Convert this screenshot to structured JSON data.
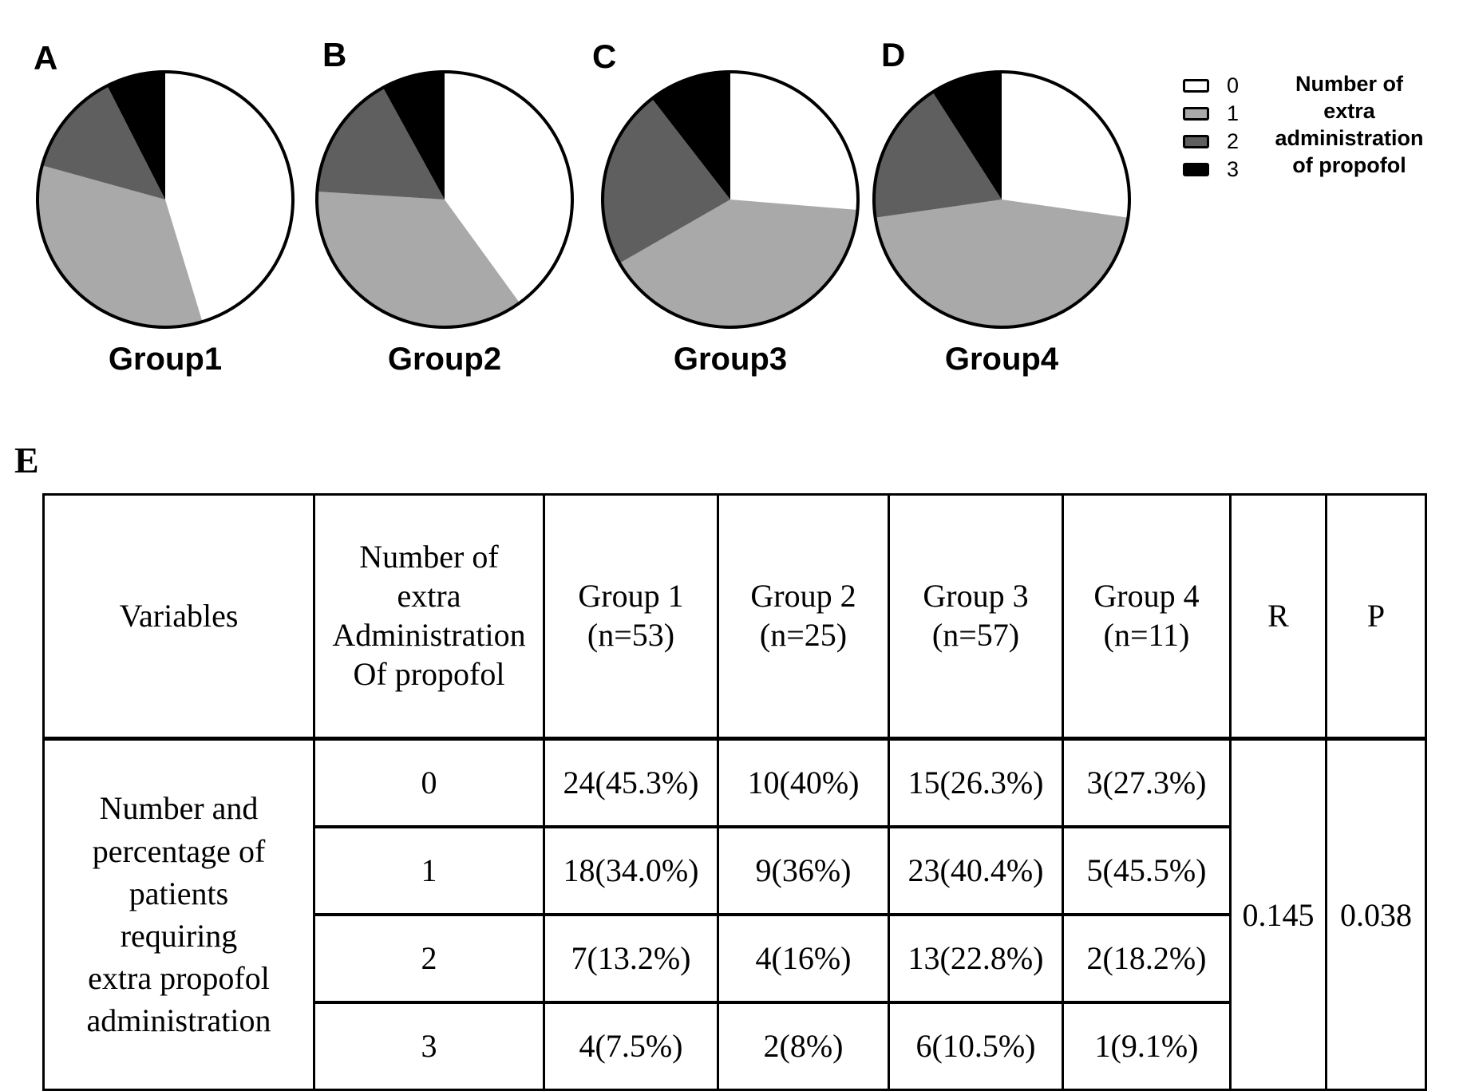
{
  "legend": {
    "title": "Number of\nextra\nadministration\nof propofol",
    "items": [
      {
        "label": "0",
        "color": "#ffffff"
      },
      {
        "label": "1",
        "color": "#a9a9a9"
      },
      {
        "label": "2",
        "color": "#5f5f5f"
      },
      {
        "label": "3",
        "color": "#000000"
      }
    ]
  },
  "chart_data": [
    {
      "type": "pie",
      "panel": "A",
      "group_label": "Group1",
      "categories": [
        "0",
        "1",
        "2",
        "3"
      ],
      "values": [
        45.3,
        34.0,
        13.2,
        7.5
      ],
      "unit": "% of patients",
      "colors": [
        "#ffffff",
        "#a9a9a9",
        "#5f5f5f",
        "#000000"
      ]
    },
    {
      "type": "pie",
      "panel": "B",
      "group_label": "Group2",
      "categories": [
        "0",
        "1",
        "2",
        "3"
      ],
      "values": [
        40,
        36,
        16,
        8
      ],
      "unit": "% of patients",
      "colors": [
        "#ffffff",
        "#a9a9a9",
        "#5f5f5f",
        "#000000"
      ]
    },
    {
      "type": "pie",
      "panel": "C",
      "group_label": "Group3",
      "categories": [
        "0",
        "1",
        "2",
        "3"
      ],
      "values": [
        26.3,
        40.4,
        22.8,
        10.5
      ],
      "unit": "% of patients",
      "colors": [
        "#ffffff",
        "#a9a9a9",
        "#5f5f5f",
        "#000000"
      ]
    },
    {
      "type": "pie",
      "panel": "D",
      "group_label": "Group4",
      "categories": [
        "0",
        "1",
        "2",
        "3"
      ],
      "values": [
        27.3,
        45.5,
        18.2,
        9.1
      ],
      "unit": "% of patients",
      "colors": [
        "#ffffff",
        "#a9a9a9",
        "#5f5f5f",
        "#000000"
      ]
    },
    {
      "type": "table",
      "panel": "E",
      "headers": [
        "Variables",
        "Number of\nextra\nAdministration\nOf propofol",
        "Group 1\n(n=53)",
        "Group 2\n(n=25)",
        "Group 3\n(n=57)",
        "Group 4\n(n=11)",
        "R",
        "P"
      ],
      "row_group_label": "Number and\npercentage of\npatients\nrequiring\nextra propofol\nadministration",
      "rows": [
        [
          "0",
          "24(45.3%)",
          "10(40%)",
          "15(26.3%)",
          "3(27.3%)"
        ],
        [
          "1",
          "18(34.0%)",
          "9(36%)",
          "23(40.4%)",
          "5(45.5%)"
        ],
        [
          "2",
          "7(13.2%)",
          "4(16%)",
          "13(22.8%)",
          "2(18.2%)"
        ],
        [
          "3",
          "4(7.5%)",
          "2(8%)",
          "6(10.5%)",
          "1(9.1%)"
        ]
      ],
      "r_value": "0.145",
      "p_value": "0.038"
    }
  ]
}
